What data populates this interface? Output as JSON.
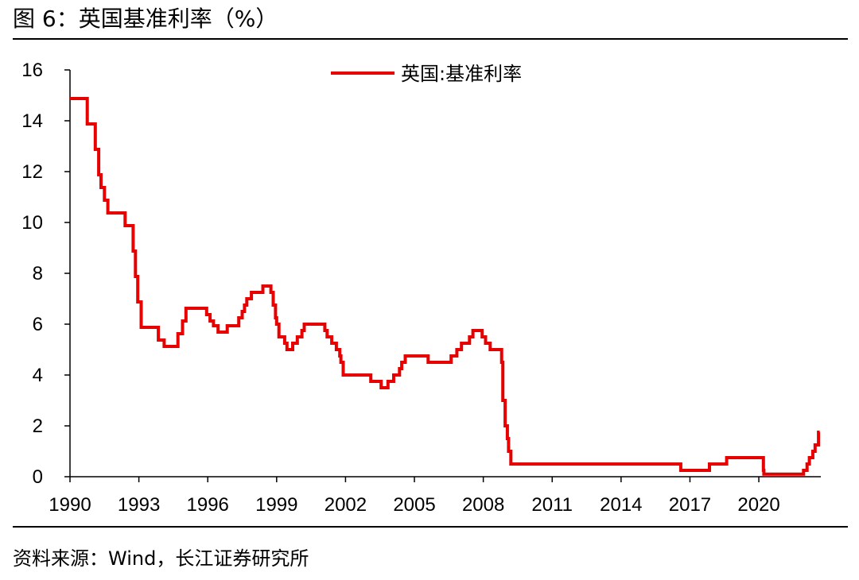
{
  "figure": {
    "title": "图 6：英国基准利率（%）",
    "source": "资料来源：Wind，长江证券研究所"
  },
  "colors": {
    "series": "#e60000",
    "axis": "#000000"
  },
  "chart_data": {
    "type": "line",
    "title": "",
    "xlabel": "",
    "ylabel": "",
    "xlim": [
      1990,
      2022.7
    ],
    "ylim": [
      0,
      16
    ],
    "x_ticks": [
      1990,
      1993,
      1996,
      1999,
      2002,
      2005,
      2008,
      2011,
      2014,
      2017,
      2020
    ],
    "x_tick_labels": [
      "1990",
      "1993",
      "1996",
      "1999",
      "2002",
      "2005",
      "2008",
      "2011",
      "2014",
      "2017",
      "2020"
    ],
    "y_ticks": [
      0,
      2,
      4,
      6,
      8,
      10,
      12,
      14,
      16
    ],
    "y_tick_labels": [
      "0",
      "2",
      "4",
      "6",
      "8",
      "10",
      "12",
      "14",
      "16"
    ],
    "grid": false,
    "legend": {
      "position": "top-center"
    },
    "step": true,
    "series": [
      {
        "name": "英国:基准利率",
        "color": "#e60000",
        "points": [
          [
            1990.0,
            14.875
          ],
          [
            1990.75,
            13.875
          ],
          [
            1991.1,
            12.875
          ],
          [
            1991.25,
            11.875
          ],
          [
            1991.35,
            11.375
          ],
          [
            1991.5,
            10.875
          ],
          [
            1991.65,
            10.375
          ],
          [
            1992.4,
            9.875
          ],
          [
            1992.75,
            8.875
          ],
          [
            1992.85,
            7.875
          ],
          [
            1992.95,
            6.875
          ],
          [
            1993.1,
            5.875
          ],
          [
            1993.85,
            5.375
          ],
          [
            1994.1,
            5.125
          ],
          [
            1994.7,
            5.625
          ],
          [
            1994.9,
            6.125
          ],
          [
            1995.05,
            6.625
          ],
          [
            1995.95,
            6.375
          ],
          [
            1996.1,
            6.125
          ],
          [
            1996.25,
            5.9375
          ],
          [
            1996.45,
            5.6875
          ],
          [
            1996.85,
            5.9375
          ],
          [
            1997.35,
            6.25
          ],
          [
            1997.5,
            6.5
          ],
          [
            1997.6,
            6.75
          ],
          [
            1997.7,
            7.0
          ],
          [
            1997.9,
            7.25
          ],
          [
            1998.4,
            7.5
          ],
          [
            1998.75,
            7.25
          ],
          [
            1998.85,
            6.75
          ],
          [
            1998.95,
            6.25
          ],
          [
            1999.0,
            6.0
          ],
          [
            1999.1,
            5.5
          ],
          [
            1999.35,
            5.25
          ],
          [
            1999.45,
            5.0
          ],
          [
            1999.7,
            5.25
          ],
          [
            1999.9,
            5.5
          ],
          [
            2000.1,
            5.75
          ],
          [
            2000.2,
            6.0
          ],
          [
            2001.1,
            5.75
          ],
          [
            2001.2,
            5.5
          ],
          [
            2001.4,
            5.25
          ],
          [
            2001.6,
            5.0
          ],
          [
            2001.75,
            4.75
          ],
          [
            2001.8,
            4.5
          ],
          [
            2001.9,
            4.0
          ],
          [
            2003.1,
            3.75
          ],
          [
            2003.55,
            3.5
          ],
          [
            2003.85,
            3.75
          ],
          [
            2004.1,
            4.0
          ],
          [
            2004.35,
            4.25
          ],
          [
            2004.45,
            4.5
          ],
          [
            2004.6,
            4.75
          ],
          [
            2005.6,
            4.5
          ],
          [
            2006.6,
            4.75
          ],
          [
            2006.85,
            5.0
          ],
          [
            2007.05,
            5.25
          ],
          [
            2007.4,
            5.5
          ],
          [
            2007.55,
            5.75
          ],
          [
            2007.95,
            5.5
          ],
          [
            2008.1,
            5.25
          ],
          [
            2008.3,
            5.0
          ],
          [
            2008.8,
            4.5
          ],
          [
            2008.85,
            3.0
          ],
          [
            2008.95,
            2.0
          ],
          [
            2009.05,
            1.5
          ],
          [
            2009.1,
            1.0
          ],
          [
            2009.2,
            0.5
          ],
          [
            2016.6,
            0.25
          ],
          [
            2017.85,
            0.5
          ],
          [
            2018.6,
            0.75
          ],
          [
            2020.2,
            0.25
          ],
          [
            2020.22,
            0.1
          ],
          [
            2021.95,
            0.25
          ],
          [
            2022.1,
            0.5
          ],
          [
            2022.2,
            0.75
          ],
          [
            2022.35,
            1.0
          ],
          [
            2022.45,
            1.25
          ],
          [
            2022.6,
            1.75
          ],
          [
            2022.65,
            1.75
          ]
        ]
      }
    ]
  }
}
